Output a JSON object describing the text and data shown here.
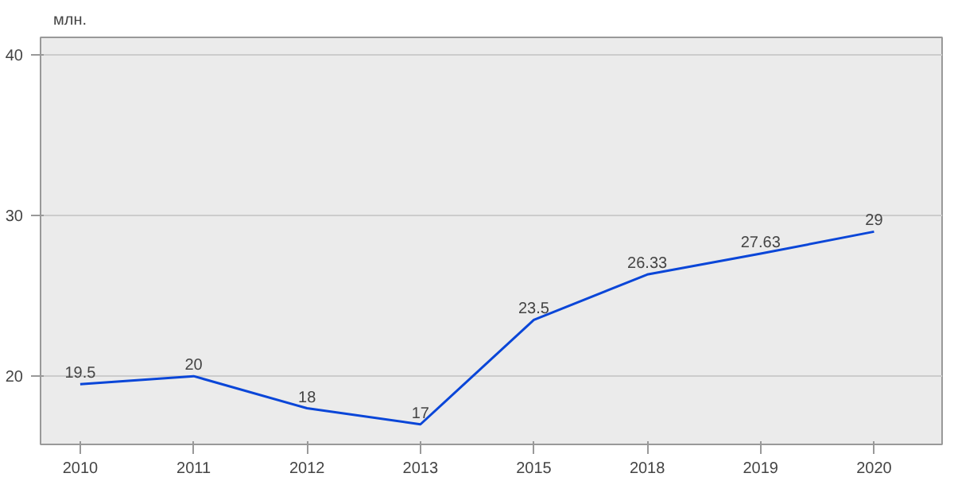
{
  "chart_data": {
    "type": "line",
    "ylabel": "млн.",
    "categories": [
      "2010",
      "2011",
      "2012",
      "2013",
      "2015",
      "2018",
      "2019",
      "2020"
    ],
    "series": [
      {
        "color": "#0a46d8",
        "values": [
          19.5,
          20,
          18,
          17,
          23.5,
          26.33,
          27.63,
          29
        ]
      }
    ],
    "ylim": [
      15.75,
      41.1
    ],
    "yticks": [
      20,
      30,
      40
    ],
    "grid": "y",
    "data_labels": true,
    "marker": "none",
    "line_style": "solid"
  }
}
